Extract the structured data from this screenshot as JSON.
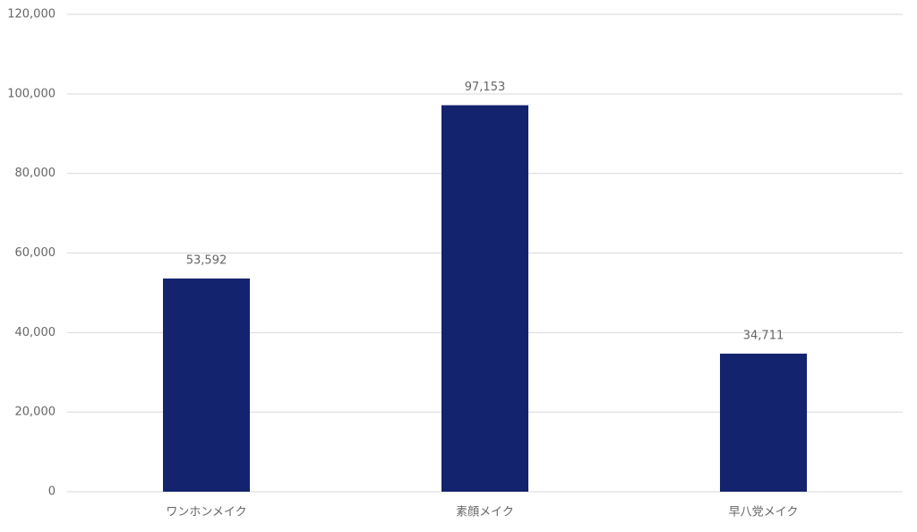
{
  "chart_data": {
    "type": "bar",
    "categories": [
      "ワンホンメイク",
      "素顔メイク",
      "早八党メイク"
    ],
    "values": [
      53592,
      97153,
      34711
    ],
    "value_labels": [
      "53,592",
      "97,153",
      "34,711"
    ],
    "color": "#14236e",
    "ylim": [
      0,
      120000
    ],
    "yticks": [
      0,
      {
        "value": 20000,
        "label": "20,000"
      },
      {
        "value": 40000,
        "label": "40,000"
      },
      {
        "value": 60000,
        "label": "60,000"
      },
      {
        "value": 80000,
        "label": "80,000"
      },
      {
        "value": 100000,
        "label": "100,000"
      },
      {
        "value": 120000,
        "label": "120,000"
      }
    ],
    "grid": true
  }
}
